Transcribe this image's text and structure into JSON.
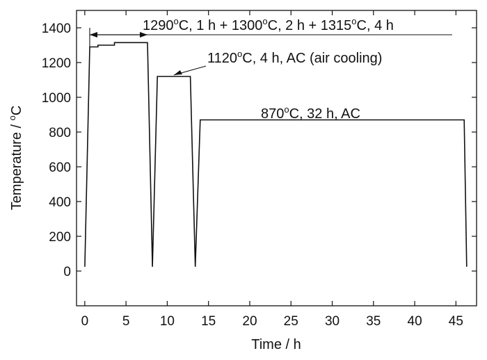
{
  "chart_data": {
    "type": "line",
    "xlabel": "Time / h",
    "ylabel": {
      "pre": "Temperature / ",
      "sup": "o",
      "post": "C"
    },
    "xlim": [
      -1,
      47.5
    ],
    "ylim": [
      -200,
      1500
    ],
    "xticks": [
      0,
      5,
      10,
      15,
      20,
      25,
      30,
      35,
      40,
      45
    ],
    "yticks": [
      0,
      200,
      400,
      600,
      800,
      1000,
      1200,
      1400
    ],
    "grid": false,
    "legend": "none",
    "line_color": "#111111",
    "series": [
      {
        "x": [
          0,
          0.6,
          1.6,
          1.6,
          3.6,
          3.6,
          7.6,
          8.2,
          8.8,
          12.8,
          13.4,
          14.0,
          46.0,
          46.3
        ],
        "y": [
          25,
          1290,
          1290,
          1300,
          1300,
          1315,
          1315,
          25,
          1120,
          1120,
          25,
          870,
          870,
          25
        ]
      }
    ],
    "annotations": [
      {
        "id": "solution-treatment",
        "parts": [
          {
            "t": "1290"
          },
          {
            "t": "o",
            "sup": true
          },
          {
            "t": "C, 1 h + 1300"
          },
          {
            "t": "o",
            "sup": true
          },
          {
            "t": "C, 2 h + 1315"
          },
          {
            "t": "o",
            "sup": true
          },
          {
            "t": "C, 4 h"
          }
        ]
      },
      {
        "id": "primary-aging",
        "parts": [
          {
            "t": "1120"
          },
          {
            "t": "o",
            "sup": true
          },
          {
            "t": "C, 4 h, AC (air cooling)"
          }
        ]
      },
      {
        "id": "secondary-aging",
        "parts": [
          {
            "t": "870"
          },
          {
            "t": "o",
            "sup": true
          },
          {
            "t": "C, 32 h, AC"
          }
        ]
      }
    ]
  }
}
